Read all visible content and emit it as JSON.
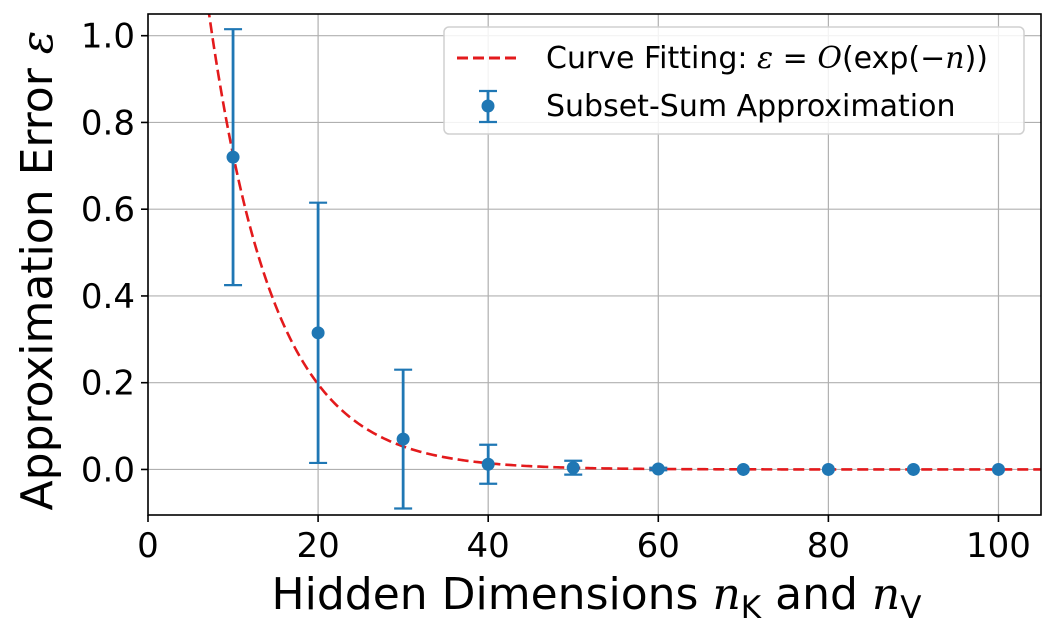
{
  "chart_data": {
    "type": "scatter",
    "xlabel": {
      "prefix": "Hidden Dimensions ",
      "var1": "n",
      "sub1": "K",
      "mid": " and ",
      "var2": "n",
      "sub2": "V"
    },
    "ylabel": {
      "prefix": "Approximation Error ",
      "var": "ε"
    },
    "xlim": [
      0,
      105
    ],
    "ylim": [
      -0.105,
      1.05
    ],
    "xticks": [
      0,
      20,
      40,
      60,
      80,
      100
    ],
    "xtick_labels": [
      "0",
      "20",
      "40",
      "60",
      "80",
      "100"
    ],
    "yticks": [
      0.0,
      0.2,
      0.4,
      0.6,
      0.8,
      1.0
    ],
    "ytick_labels": [
      "0.0",
      "0.2",
      "0.4",
      "0.6",
      "0.8",
      "1.0"
    ],
    "grid": true,
    "legend_position": "top-right",
    "series": [
      {
        "name": "Subset-Sum Approximation",
        "kind": "errorbar",
        "color": "#1f77b4",
        "x": [
          10,
          20,
          30,
          40,
          50,
          60,
          70,
          80,
          90,
          100
        ],
        "y": [
          0.72,
          0.315,
          0.07,
          0.012,
          0.004,
          0.001,
          0.0,
          0.0,
          0.0,
          0.0
        ],
        "yerr": [
          0.295,
          0.3,
          0.16,
          0.045,
          0.016,
          0.003,
          0.0,
          0.0,
          0.0,
          0.0
        ]
      },
      {
        "name": "Curve Fitting: ε = O(exp(−n))",
        "name_parts": {
          "prefix": "Curve Fitting: ",
          "eps": "ε",
          "eq": " = ",
          "big_o": "O",
          "open": "(exp(−",
          "n": "n",
          "close": "))"
        },
        "kind": "line",
        "style": "dashed",
        "color": "#e31a1c",
        "function": "2.684 * exp(-0.1307 * x)"
      }
    ]
  }
}
